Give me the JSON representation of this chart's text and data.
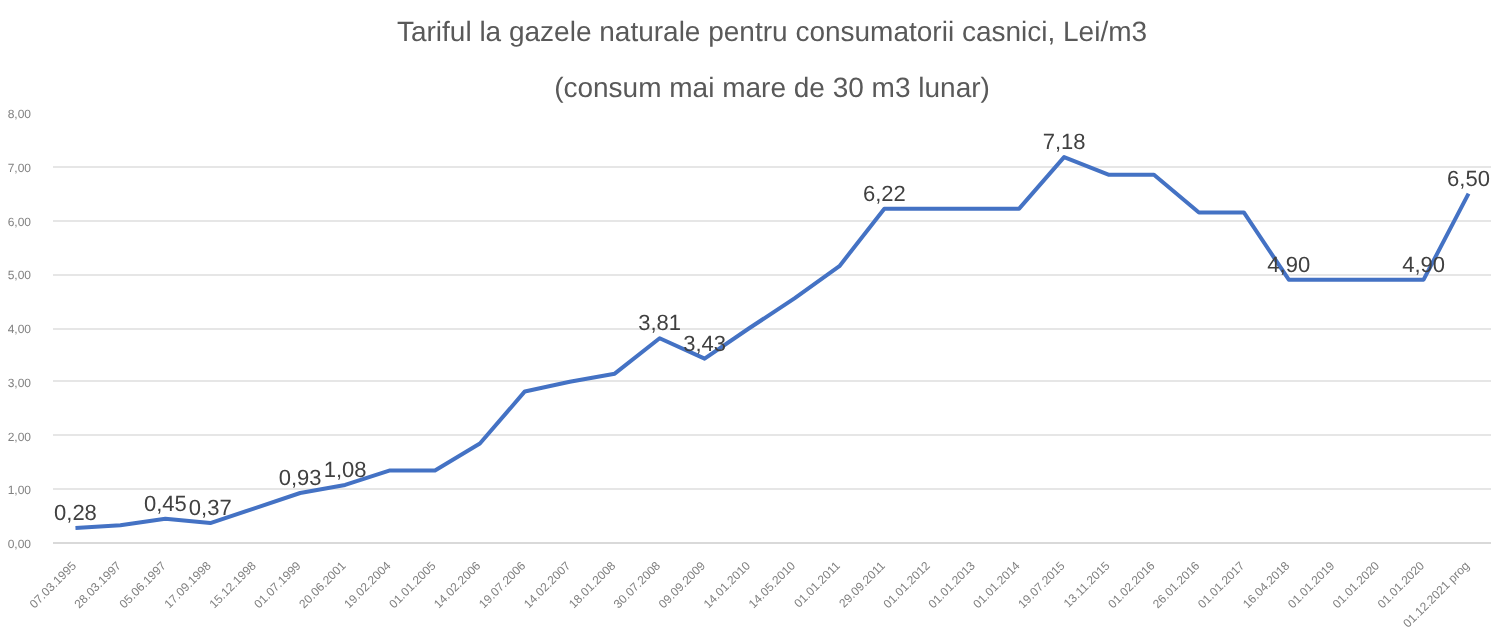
{
  "chart_data": {
    "type": "line",
    "title": "Tariful la gazele naturale pentru consumatorii casnici, Lei/m3",
    "subtitle": "(consum mai mare de 30 m3 lunar)",
    "categories": [
      "07.03.1995",
      "28.03.1997",
      "05.06.1997",
      "17.09.1998",
      "15.12.1998",
      "01.07.1999",
      "20.06.2001",
      "19.02.2004",
      "01.01.2005",
      "14.02.2006",
      "19.07.2006",
      "14.02.2007",
      "18.01.2008",
      "30.07.2008",
      "09.09.2009",
      "14.01.2010",
      "14.05.2010",
      "01.01.2011",
      "29.09.2011",
      "01.01.2012",
      "01.01.2013",
      "01.01.2014",
      "19.07.2015",
      "13.11.2015",
      "01.02.2016",
      "26.01.2016",
      "01.01.2017",
      "16.04.2018",
      "01.01.2019",
      "01.01.2020",
      "01.01.2020",
      "01.12.2021 prog"
    ],
    "series": [
      {
        "color": "#4472c4",
        "values": [
          0.28,
          0.33,
          0.45,
          0.37,
          0.65,
          0.93,
          1.08,
          1.35,
          1.35,
          1.85,
          2.82,
          3.0,
          3.15,
          3.81,
          3.43,
          4.0,
          4.55,
          5.15,
          6.22,
          6.22,
          6.22,
          6.22,
          7.18,
          6.85,
          6.85,
          6.15,
          6.15,
          4.9,
          4.9,
          4.9,
          4.9,
          6.5
        ],
        "value_labels": [
          "0,28",
          null,
          "0,45",
          "0,37",
          null,
          "0,93",
          "1,08",
          null,
          null,
          null,
          null,
          null,
          null,
          "3,81",
          "3,43",
          null,
          null,
          null,
          "6,22",
          null,
          null,
          null,
          "7,18",
          null,
          null,
          null,
          null,
          "4,90",
          null,
          null,
          "4,90",
          "6,50"
        ]
      }
    ],
    "ylim": [
      0,
      8
    ],
    "yticks": [
      {
        "value": 0,
        "label": "0,00"
      },
      {
        "value": 1,
        "label": "1,00"
      },
      {
        "value": 2,
        "label": "2,00"
      },
      {
        "value": 3,
        "label": "3,00"
      },
      {
        "value": 4,
        "label": "4,00"
      },
      {
        "value": 5,
        "label": "5,00"
      },
      {
        "value": 6,
        "label": "6,00"
      },
      {
        "value": 7,
        "label": "7,00"
      },
      {
        "value": 8,
        "label": "8,00"
      }
    ],
    "grid": "y",
    "line_style": "solid",
    "marker": "none"
  }
}
